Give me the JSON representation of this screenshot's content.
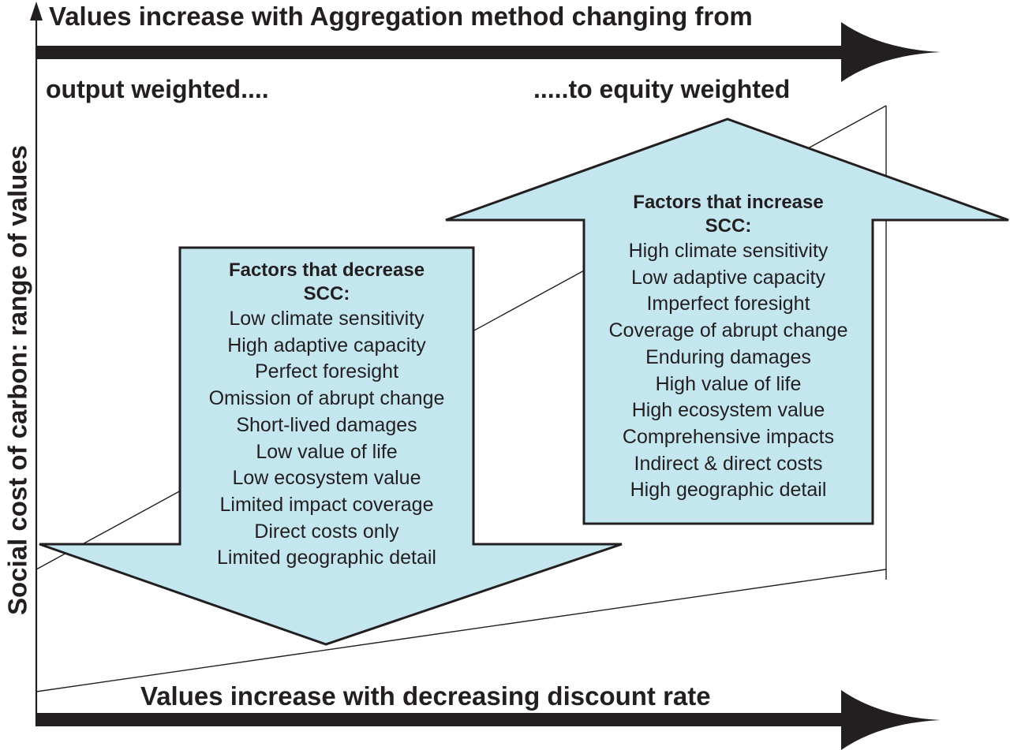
{
  "diagram": {
    "top_title": "Values increase with Aggregation method changing from",
    "start_label": "output weighted....",
    "end_label": ".....to  equity weighted",
    "bottom_title": "Values increase with decreasing discount rate",
    "y_axis_label": "Social cost of carbon: range of values",
    "colors": {
      "arrow_fill": "#c3e6ef",
      "ink": "#231f20",
      "background": "#ffffff"
    }
  },
  "decrease_box": {
    "heading": "Factors that decrease\nSCC:",
    "items": [
      "Low climate sensitivity",
      "High adaptive capacity",
      "Perfect foresight",
      "Omission of abrupt change",
      "Short-lived damages",
      "Low value of life",
      "Low ecosystem value",
      "Limited impact coverage",
      "Direct costs only",
      "Limited geographic detail"
    ]
  },
  "increase_box": {
    "heading": "Factors that increase\nSCC:",
    "items": [
      "High climate sensitivity",
      "Low adaptive capacity",
      "Imperfect foresight",
      "Coverage of abrupt change",
      "Enduring damages",
      "High value of life",
      "High ecosystem value",
      "Comprehensive impacts",
      "Indirect & direct costs",
      "High geographic detail"
    ]
  }
}
